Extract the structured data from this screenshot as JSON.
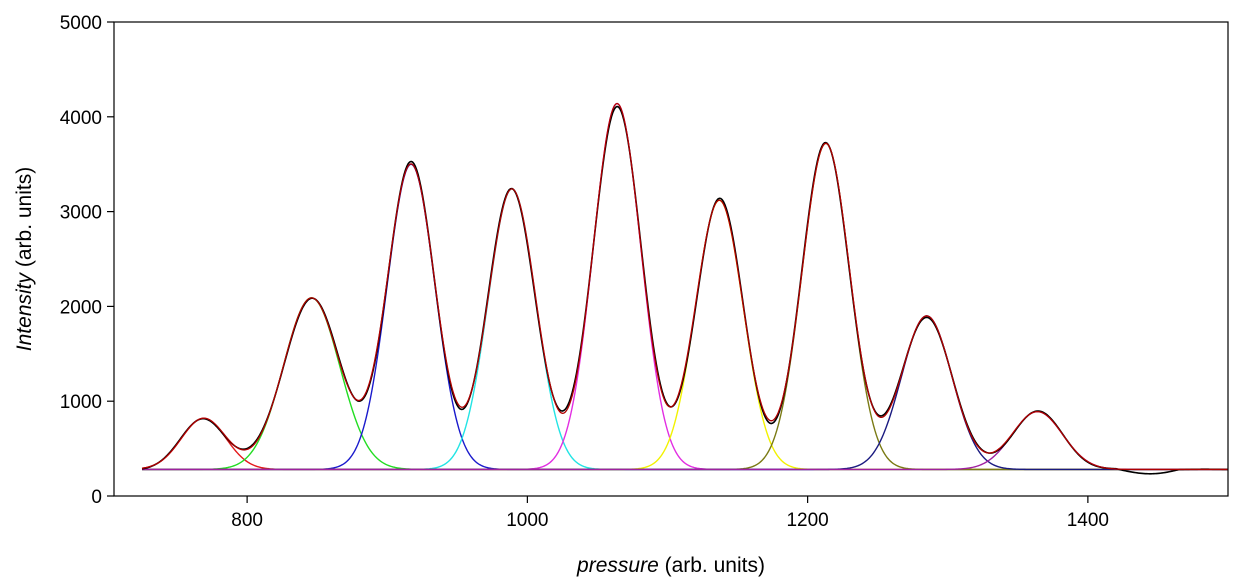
{
  "chart_data": {
    "type": "line",
    "title": "",
    "xlabel": {
      "italic": "pressure",
      "rest": " (arb. units)"
    },
    "ylabel": {
      "italic": "Intensity",
      "rest": " (arb. units)"
    },
    "xlim": [
      705,
      1500
    ],
    "ylim": [
      0,
      5000
    ],
    "xticks": [
      800,
      1000,
      1200,
      1400
    ],
    "xtick_labels": [
      "800",
      "1000",
      "1200",
      "1400"
    ],
    "yticks": [
      0,
      1000,
      2000,
      3000,
      4000,
      5000
    ],
    "ytick_labels": [
      "0",
      "1000",
      "2000",
      "3000",
      "4000",
      "5000"
    ],
    "grid": false,
    "legend": "none",
    "baseline": 280,
    "peaks": [
      {
        "center": 769,
        "amplitude": 540,
        "sigma": 16,
        "color": "#e41a1c"
      },
      {
        "center": 846,
        "amplitude": 1810,
        "sigma": 20,
        "color": "#22dd22"
      },
      {
        "center": 917,
        "amplitude": 3220,
        "sigma": 17,
        "color": "#1a1acc"
      },
      {
        "center": 989,
        "amplitude": 2960,
        "sigma": 17,
        "color": "#22e4e4"
      },
      {
        "center": 1064,
        "amplitude": 3860,
        "sigma": 17,
        "color": "#e22ee2"
      },
      {
        "center": 1137,
        "amplitude": 2840,
        "sigma": 17,
        "color": "#f2f200"
      },
      {
        "center": 1213,
        "amplitude": 3440,
        "sigma": 17,
        "color": "#7a7a14"
      },
      {
        "center": 1285,
        "amplitude": 1620,
        "sigma": 18,
        "color": "#1a1a80"
      },
      {
        "center": 1364,
        "amplitude": 610,
        "sigma": 18,
        "color": "#a020a0"
      }
    ],
    "series": [
      {
        "color": "#000000",
        "kind": "data"
      },
      {
        "color": "#b00000",
        "kind": "fit"
      }
    ]
  }
}
